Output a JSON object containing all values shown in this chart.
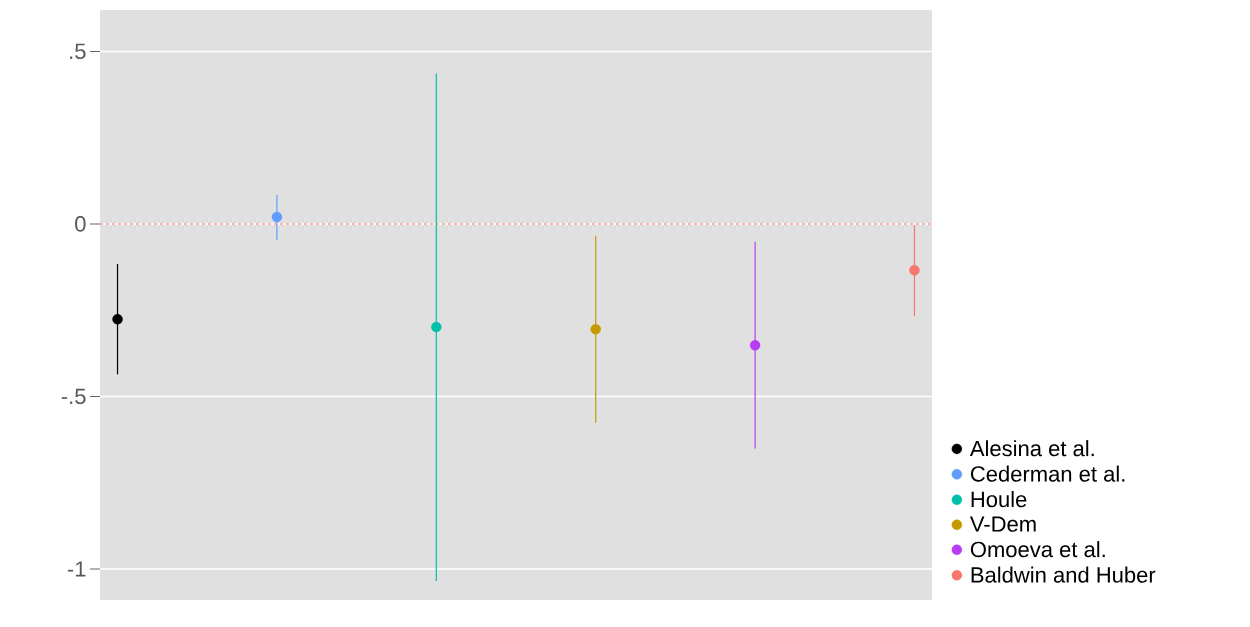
{
  "chart_data": {
    "type": "scatter",
    "categories": [
      null,
      null,
      null,
      null,
      null,
      null
    ],
    "series": [
      {
        "name": "Alesina et al.",
        "color": "#000000",
        "values": [
          -0.276,
          null,
          null,
          null,
          null,
          null
        ],
        "errors": [
          [
            -0.436,
            -0.116
          ],
          null,
          null,
          null,
          null,
          null
        ]
      },
      {
        "name": "Cederman et al.",
        "color": "#619cff",
        "values": [
          null,
          0.02,
          null,
          null,
          null,
          null
        ],
        "errors": [
          null,
          [
            -0.047,
            0.084
          ],
          null,
          null,
          null,
          null
        ]
      },
      {
        "name": "Houle",
        "color": "#00c0aa",
        "values": [
          null,
          null,
          -0.299,
          null,
          null,
          null
        ],
        "errors": [
          null,
          null,
          [
            -1.035,
            0.436
          ],
          null,
          null,
          null
        ]
      },
      {
        "name": "V-Dem",
        "color": "#c49a00",
        "values": [
          null,
          null,
          null,
          -0.305,
          null,
          null
        ],
        "errors": [
          null,
          null,
          null,
          [
            -0.576,
            -0.035
          ],
          null,
          null
        ]
      },
      {
        "name": "Omoeva et al.",
        "color": "#b83cf5",
        "values": [
          null,
          null,
          null,
          null,
          -0.352,
          null
        ],
        "errors": [
          null,
          null,
          null,
          null,
          [
            -0.651,
            -0.052
          ],
          null
        ]
      },
      {
        "name": "Baldwin and Huber",
        "color": "#f8766d",
        "values": [
          null,
          null,
          null,
          null,
          null,
          -0.134
        ],
        "errors": [
          null,
          null,
          null,
          null,
          null,
          [
            -0.267,
            -0.003
          ]
        ]
      }
    ],
    "ylim": [
      -1.09,
      0.62
    ],
    "yticks": [
      {
        "value": -1,
        "label": "-1"
      },
      {
        "value": -0.5,
        "label": "-.5"
      },
      0,
      {
        "value": 0.5,
        "label": ".5"
      }
    ],
    "ref_lines": [
      {
        "axis": "y",
        "value": 0,
        "color": "#f8766d",
        "line_style": "dashed"
      }
    ],
    "grid": "y",
    "legend": "right"
  }
}
